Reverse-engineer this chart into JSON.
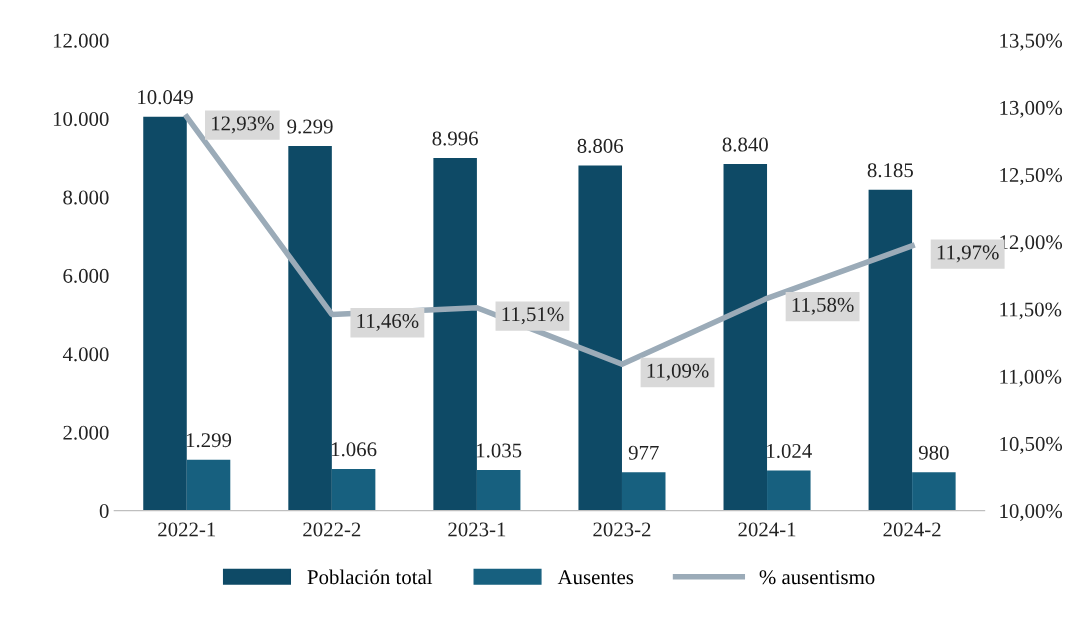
{
  "chart_data": {
    "type": "bar",
    "categories": [
      "2022-1",
      "2022-2",
      "2023-1",
      "2023-2",
      "2024-1",
      "2024-2"
    ],
    "series": [
      {
        "name": "Población total",
        "color": "#0e4a66",
        "values": [
          10049,
          9299,
          8996,
          8806,
          8840,
          8185
        ],
        "value_labels": [
          "10.049",
          "9.299",
          "8.996",
          "8.806",
          "8.840",
          "8.185"
        ]
      },
      {
        "name": "Ausentes",
        "color": "#17607f",
        "values": [
          1299,
          1066,
          1035,
          977,
          1024,
          980
        ],
        "value_labels": [
          "1.299",
          "1.066",
          "1.035",
          "977",
          "1.024",
          "980"
        ]
      },
      {
        "name": "% ausentismo",
        "type": "line",
        "axis": "y2",
        "color": "#9babb8",
        "values": [
          12.93,
          11.46,
          11.51,
          11.09,
          11.58,
          11.97
        ],
        "value_labels": [
          "12,93%",
          "11,46%",
          "11,51%",
          "11,09%",
          "11,58%",
          "11,97%"
        ]
      }
    ],
    "ylim": [
      0,
      12000
    ],
    "yticks": [
      {
        "value": 0,
        "label": "0"
      },
      {
        "value": 2000,
        "label": "2.000"
      },
      {
        "value": 4000,
        "label": "4.000"
      },
      {
        "value": 6000,
        "label": "6.000"
      },
      {
        "value": 8000,
        "label": "8.000"
      },
      {
        "value": 10000,
        "label": "10.000"
      },
      {
        "value": 12000,
        "label": "12.000"
      }
    ],
    "y2lim": [
      10,
      13.5
    ],
    "y2ticks": [
      {
        "value": 10,
        "label": "10,00%"
      },
      {
        "value": 10.5,
        "label": "10,50%"
      },
      {
        "value": 11,
        "label": "11,00%"
      },
      {
        "value": 11.5,
        "label": "11,50%"
      },
      {
        "value": 12,
        "label": "12,00%"
      },
      {
        "value": 12.5,
        "label": "12,50%"
      },
      {
        "value": 13,
        "label": "13,00%"
      },
      {
        "value": 13.5,
        "label": "13,50%"
      }
    ],
    "grid": false,
    "legend": "bottom"
  }
}
